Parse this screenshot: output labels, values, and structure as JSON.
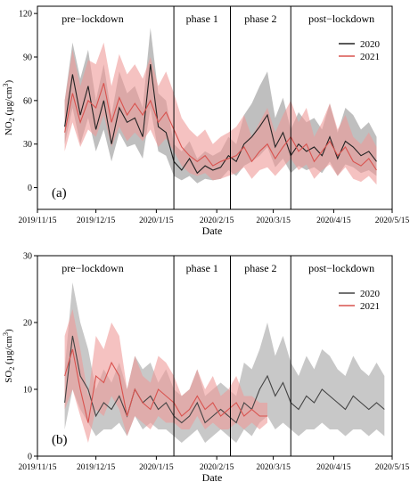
{
  "chart_data": [
    {
      "panel_label": "(a)",
      "type": "line",
      "xlabel": "Date",
      "ylabel_main": "NO",
      "ylabel_sub": "2",
      "ylabel_unit_open": " (µg/cm",
      "ylabel_unit_sup": "3",
      "ylabel_unit_close": ")",
      "x_ticks": [
        "2019/11/15",
        "2019/12/15",
        "2020/1/15",
        "2020/2/15",
        "2020/3/15",
        "2020/4/15",
        "2020/5/15"
      ],
      "y_ticks": [
        "0",
        "30",
        "60",
        "90",
        "120"
      ],
      "ylim": [
        -15,
        125
      ],
      "xlim": [
        "2019-11-15",
        "2020-05-15"
      ],
      "period_boundaries": [
        "2020-01-24",
        "2020-02-22",
        "2020-03-24"
      ],
      "period_labels": [
        "pre−lockdown",
        "phase 1",
        "phase 2",
        "post−lockdown"
      ],
      "legend_position": "top-right",
      "series": [
        {
          "name": "2020",
          "color": "#222222",
          "band_color": "#aaaaaa",
          "x": [
            "2019-11-29",
            "2019-12-03",
            "2019-12-07",
            "2019-12-11",
            "2019-12-15",
            "2019-12-19",
            "2019-12-23",
            "2019-12-27",
            "2019-12-31",
            "2020-01-04",
            "2020-01-08",
            "2020-01-12",
            "2020-01-16",
            "2020-01-20",
            "2020-01-24",
            "2020-01-28",
            "2020-02-01",
            "2020-02-05",
            "2020-02-09",
            "2020-02-13",
            "2020-02-17",
            "2020-02-21",
            "2020-02-25",
            "2020-02-29",
            "2020-03-04",
            "2020-03-08",
            "2020-03-12",
            "2020-03-16",
            "2020-03-20",
            "2020-03-24",
            "2020-03-28",
            "2020-04-01",
            "2020-04-05",
            "2020-04-09",
            "2020-04-13",
            "2020-04-17",
            "2020-04-21",
            "2020-04-25",
            "2020-04-29",
            "2020-05-03",
            "2020-05-07"
          ],
          "y": [
            42,
            78,
            50,
            70,
            40,
            60,
            30,
            55,
            45,
            48,
            35,
            85,
            42,
            38,
            18,
            12,
            20,
            10,
            15,
            12,
            14,
            22,
            18,
            30,
            35,
            42,
            50,
            28,
            38,
            22,
            30,
            25,
            28,
            22,
            35,
            20,
            32,
            28,
            22,
            25,
            18
          ],
          "lower": [
            30,
            55,
            30,
            48,
            25,
            40,
            18,
            38,
            28,
            30,
            20,
            55,
            25,
            22,
            8,
            5,
            8,
            3,
            6,
            5,
            6,
            12,
            8,
            15,
            18,
            22,
            28,
            14,
            20,
            10,
            15,
            12,
            14,
            10,
            18,
            8,
            16,
            14,
            10,
            12,
            8
          ],
          "upper": [
            60,
            100,
            75,
            95,
            60,
            85,
            50,
            80,
            65,
            70,
            55,
            110,
            65,
            60,
            30,
            25,
            32,
            20,
            25,
            22,
            25,
            35,
            30,
            50,
            58,
            70,
            80,
            48,
            62,
            40,
            52,
            45,
            48,
            40,
            58,
            38,
            55,
            50,
            40,
            45,
            35
          ]
        },
        {
          "name": "2021",
          "color": "#d9534f",
          "band_color": "#ef9a98",
          "x": [
            "2019-11-29",
            "2019-12-03",
            "2019-12-07",
            "2019-12-11",
            "2019-12-15",
            "2019-12-19",
            "2019-12-23",
            "2019-12-27",
            "2019-12-31",
            "2020-01-04",
            "2020-01-08",
            "2020-01-12",
            "2020-01-16",
            "2020-01-20",
            "2020-01-24",
            "2020-01-28",
            "2020-02-01",
            "2020-02-05",
            "2020-02-09",
            "2020-02-13",
            "2020-02-17",
            "2020-02-21",
            "2020-02-25",
            "2020-02-29",
            "2020-03-04",
            "2020-03-08",
            "2020-03-12",
            "2020-03-16",
            "2020-03-20",
            "2020-03-24",
            "2020-03-28",
            "2020-04-01",
            "2020-04-05",
            "2020-04-09",
            "2020-04-13",
            "2020-04-17",
            "2020-04-21",
            "2020-04-25",
            "2020-04-29",
            "2020-05-03",
            "2020-05-07"
          ],
          "y": [
            38,
            65,
            45,
            60,
            55,
            72,
            45,
            62,
            50,
            58,
            50,
            60,
            45,
            52,
            40,
            28,
            22,
            18,
            22,
            15,
            18,
            20,
            22,
            28,
            18,
            25,
            30,
            20,
            28,
            35,
            25,
            30,
            18,
            25,
            32,
            22,
            28,
            18,
            15,
            20,
            12
          ],
          "lower": [
            25,
            45,
            28,
            40,
            35,
            50,
            28,
            42,
            32,
            38,
            32,
            40,
            28,
            34,
            25,
            15,
            10,
            8,
            10,
            5,
            6,
            8,
            10,
            14,
            6,
            12,
            14,
            8,
            14,
            20,
            12,
            16,
            6,
            12,
            16,
            8,
            14,
            6,
            4,
            8,
            2
          ],
          "upper": [
            60,
            95,
            70,
            88,
            85,
            100,
            70,
            92,
            78,
            85,
            75,
            90,
            70,
            80,
            65,
            48,
            40,
            35,
            40,
            30,
            35,
            38,
            42,
            50,
            35,
            45,
            55,
            38,
            50,
            60,
            45,
            55,
            35,
            45,
            58,
            40,
            50,
            35,
            30,
            38,
            28
          ]
        }
      ]
    },
    {
      "panel_label": "(b)",
      "type": "line",
      "xlabel": "Date",
      "ylabel_main": "SO",
      "ylabel_sub": "2",
      "ylabel_unit_open": " (µg/cm",
      "ylabel_unit_sup": "3",
      "ylabel_unit_close": ")",
      "x_ticks": [
        "2019/11/15",
        "2019/12/15",
        "2020/1/15",
        "2020/2/15",
        "2020/3/15",
        "2020/4/15",
        "2020/5/15"
      ],
      "y_ticks": [
        "0",
        "10",
        "20",
        "30"
      ],
      "ylim": [
        0,
        30
      ],
      "xlim": [
        "2019-11-15",
        "2020-05-15"
      ],
      "period_boundaries": [
        "2020-01-24",
        "2020-02-22",
        "2020-03-24"
      ],
      "period_labels": [
        "pre−lockdown",
        "phase 1",
        "phase 2",
        "post−lockdown"
      ],
      "legend_position": "top-right",
      "series": [
        {
          "name": "2020",
          "color": "#444444",
          "band_color": "#b5b5b5",
          "x": [
            "2019-11-29",
            "2019-12-03",
            "2019-12-07",
            "2019-12-11",
            "2019-12-15",
            "2019-12-19",
            "2019-12-23",
            "2019-12-27",
            "2019-12-31",
            "2020-01-04",
            "2020-01-08",
            "2020-01-12",
            "2020-01-16",
            "2020-01-20",
            "2020-01-24",
            "2020-01-28",
            "2020-02-01",
            "2020-02-05",
            "2020-02-09",
            "2020-02-13",
            "2020-02-17",
            "2020-02-21",
            "2020-02-25",
            "2020-02-29",
            "2020-03-04",
            "2020-03-08",
            "2020-03-12",
            "2020-03-16",
            "2020-03-20",
            "2020-03-24",
            "2020-03-28",
            "2020-04-01",
            "2020-04-05",
            "2020-04-09",
            "2020-04-13",
            "2020-04-17",
            "2020-04-21",
            "2020-04-25",
            "2020-04-29",
            "2020-05-03",
            "2020-05-07",
            "2020-05-11"
          ],
          "y": [
            8,
            18,
            12,
            10,
            6,
            8,
            7,
            9,
            6,
            10,
            8,
            9,
            7,
            8,
            6,
            5,
            6,
            8,
            5,
            6,
            7,
            6,
            5,
            8,
            7,
            10,
            12,
            9,
            11,
            8,
            7,
            9,
            8,
            10,
            9,
            8,
            7,
            9,
            8,
            7,
            8,
            7
          ],
          "lower": [
            4,
            10,
            7,
            5,
            3,
            4,
            4,
            5,
            3,
            6,
            4,
            5,
            4,
            4,
            3,
            2,
            3,
            4,
            2,
            3,
            4,
            3,
            2,
            4,
            3,
            5,
            6,
            4,
            5,
            4,
            3,
            4,
            4,
            5,
            4,
            4,
            3,
            4,
            4,
            3,
            4,
            3
          ],
          "upper": [
            13,
            26,
            20,
            16,
            10,
            13,
            11,
            14,
            10,
            15,
            13,
            14,
            11,
            13,
            10,
            9,
            10,
            13,
            9,
            10,
            11,
            10,
            9,
            14,
            13,
            16,
            20,
            15,
            18,
            14,
            12,
            15,
            13,
            16,
            15,
            13,
            12,
            15,
            13,
            12,
            14,
            12
          ]
        },
        {
          "name": "2021",
          "color": "#d9534f",
          "band_color": "#ef9a98",
          "x": [
            "2019-11-29",
            "2019-12-03",
            "2019-12-07",
            "2019-12-11",
            "2019-12-15",
            "2019-12-19",
            "2019-12-23",
            "2019-12-27",
            "2019-12-31",
            "2020-01-04",
            "2020-01-08",
            "2020-01-12",
            "2020-01-16",
            "2020-01-20",
            "2020-01-24",
            "2020-01-28",
            "2020-02-01",
            "2020-02-05",
            "2020-02-09",
            "2020-02-13",
            "2020-02-17",
            "2020-02-21",
            "2020-02-25",
            "2020-02-29",
            "2020-03-04",
            "2020-03-08",
            "2020-03-12"
          ],
          "y": [
            12,
            16,
            10,
            5,
            12,
            11,
            14,
            12,
            6,
            10,
            8,
            7,
            10,
            9,
            8,
            6,
            7,
            9,
            7,
            8,
            6,
            7,
            8,
            6,
            7,
            6,
            6
          ],
          "lower": [
            7,
            10,
            6,
            2,
            7,
            6,
            9,
            7,
            3,
            6,
            5,
            4,
            6,
            5,
            5,
            4,
            4,
            6,
            4,
            5,
            4,
            4,
            5,
            4,
            5,
            4,
            5
          ],
          "upper": [
            18,
            22,
            16,
            9,
            18,
            16,
            20,
            18,
            10,
            15,
            12,
            11,
            15,
            14,
            12,
            9,
            10,
            13,
            10,
            12,
            9,
            10,
            12,
            9,
            9,
            8,
            8
          ]
        }
      ]
    }
  ]
}
